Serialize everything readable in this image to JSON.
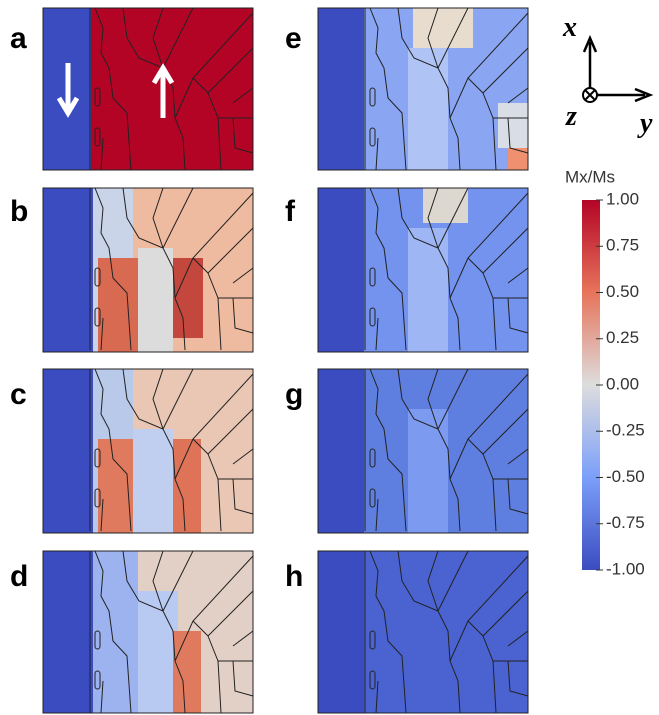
{
  "panels": {
    "labels": [
      "a",
      "b",
      "c",
      "d",
      "e",
      "f",
      "g",
      "h"
    ]
  },
  "axes": {
    "x": "x",
    "y": "y",
    "z": "z"
  },
  "colorbar": {
    "title": "Mx/Ms",
    "lim": [
      -1,
      1
    ],
    "ticks": [
      {
        "value": 1,
        "label": "1.00"
      },
      {
        "value": 0.75,
        "label": "0.75"
      },
      {
        "value": 0.5,
        "label": "0.50"
      },
      {
        "value": 0.25,
        "label": "0.25"
      },
      {
        "value": 0,
        "label": "0.00"
      },
      {
        "value": -0.25,
        "label": "-0.25"
      },
      {
        "value": -0.5,
        "label": "-0.50"
      },
      {
        "value": -0.75,
        "label": "-0.75"
      },
      {
        "value": -1,
        "label": "-1.00"
      }
    ]
  }
}
